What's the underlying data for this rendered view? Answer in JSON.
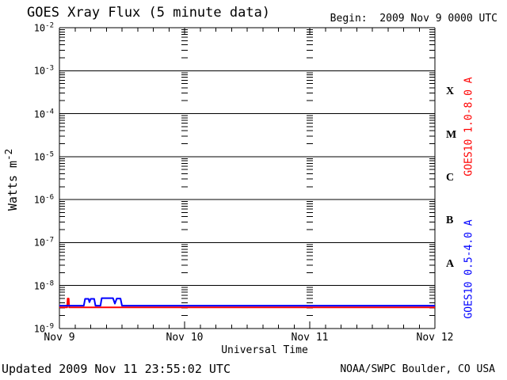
{
  "header": {
    "title": "GOES Xray Flux (5 minute data)",
    "begin": "Begin:  2009 Nov 9 0000 UTC"
  },
  "axes": {
    "ylabel_base": "Watts m",
    "ylabel_exp": "-2",
    "xlabel": "Universal Time"
  },
  "footer": {
    "updated": "Updated 2009 Nov 11 23:55:02 UTC",
    "credit": "NOAA/SWPC Boulder, CO USA"
  },
  "colors": {
    "long_channel": "#ff0000",
    "short_channel": "#0000ff",
    "axis": "#000000",
    "background": "#ffffff"
  },
  "chart_data": {
    "type": "line",
    "title": "GOES Xray Flux (5 minute data)",
    "xlabel": "Universal Time",
    "ylabel": "Watts m^-2",
    "y_axis": {
      "scale": "log",
      "min": 1e-09,
      "max": 0.01,
      "decades": [
        -2,
        -3,
        -4,
        -5,
        -6,
        -7,
        -8,
        -9
      ],
      "grid": "solid horizontal line at each decade"
    },
    "x_axis": {
      "start": "2009 Nov 9 0000 UTC",
      "span_days": 3,
      "minor_tick_hours": 3,
      "day_grid": "column of log-minor dashes at each interior day boundary",
      "tick_labels": [
        {
          "label": "Nov 9",
          "day": 0
        },
        {
          "label": "Nov 10",
          "day": 1
        },
        {
          "label": "Nov 11",
          "day": 2
        },
        {
          "label": "Nov 12",
          "day": 3
        }
      ]
    },
    "flare_classes": [
      {
        "label": "X",
        "level": 0.000316
      },
      {
        "label": "M",
        "level": 3.16e-05
      },
      {
        "label": "C",
        "level": 3.16e-06
      },
      {
        "label": "B",
        "level": 3.16e-07
      },
      {
        "label": "A",
        "level": 3.16e-08
      }
    ],
    "series": [
      {
        "name": "GOES10 1.0-8.0 A",
        "channel": "long",
        "color": "#ff0000",
        "points": [
          [
            0,
            3.1e-09
          ],
          [
            0.062,
            3.1e-09
          ],
          [
            0.066,
            5e-09
          ],
          [
            0.074,
            5e-09
          ],
          [
            0.078,
            3.1e-09
          ],
          [
            3,
            3.1e-09
          ]
        ]
      },
      {
        "name": "GOES10 0.5-4.0 A",
        "channel": "short",
        "color": "#0000ff",
        "points": [
          [
            0,
            3.4e-09
          ],
          [
            0.195,
            3.4e-09
          ],
          [
            0.205,
            4.9e-09
          ],
          [
            0.232,
            4.9e-09
          ],
          [
            0.24,
            4.1e-09
          ],
          [
            0.25,
            4.9e-09
          ],
          [
            0.278,
            4.9e-09
          ],
          [
            0.288,
            3.4e-09
          ],
          [
            0.328,
            3.4e-09
          ],
          [
            0.338,
            5.1e-09
          ],
          [
            0.428,
            5.1e-09
          ],
          [
            0.443,
            3.8e-09
          ],
          [
            0.458,
            5e-09
          ],
          [
            0.488,
            5e-09
          ],
          [
            0.5,
            3.4e-09
          ],
          [
            3,
            3.4e-09
          ]
        ]
      }
    ]
  }
}
